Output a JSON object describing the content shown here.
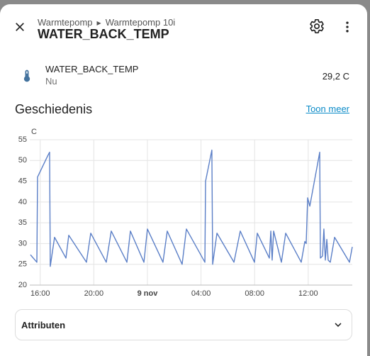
{
  "header": {
    "breadcrumb": [
      "Warmtepomp",
      "Warmtepomp 10i"
    ],
    "title": "WATER_BACK_TEMP"
  },
  "entity": {
    "name": "WATER_BACK_TEMP",
    "state_label": "Nu",
    "value": "29,2 C"
  },
  "history": {
    "title": "Geschiedenis",
    "link": "Toon meer"
  },
  "chart_data": {
    "type": "line",
    "y_label": "C",
    "x": [
      -8.73,
      -8.25,
      -8.2,
      -7.46,
      -7.3,
      -7.25,
      -6.93,
      -6.08,
      -5.87,
      -4.55,
      -4.23,
      -3.07,
      -2.7,
      -1.53,
      -1.27,
      -0.26,
      0,
      1.16,
      1.48,
      2.59,
      2.91,
      4.29,
      4.34,
      4.81,
      4.87,
      5.19,
      6.46,
      6.93,
      7.99,
      8.2,
      9.1,
      9.21,
      9.31,
      9.42,
      10.0,
      10.32,
      11.48,
      11.75,
      11.85,
      11.96,
      12.12,
      12.86,
      12.91,
      13.07,
      13.17,
      13.28,
      13.39,
      13.49,
      13.65,
      13.97,
      15.08,
      15.29
    ],
    "series": [
      {
        "color": "#5b7fc7",
        "values": [
          27.3,
          25.5,
          46,
          51,
          52,
          24.5,
          31.5,
          26.5,
          32,
          25.5,
          32.5,
          25.5,
          33,
          25.5,
          33,
          25.5,
          33.5,
          25.5,
          33,
          25,
          33.5,
          25.5,
          45,
          52.5,
          25,
          32.5,
          25.5,
          33,
          25.5,
          32.5,
          26.5,
          33,
          26,
          33,
          25.5,
          32.5,
          25.5,
          30.5,
          30,
          41,
          39,
          52,
          26.5,
          27,
          33.5,
          26,
          31,
          26,
          25.5,
          31.5,
          25.5,
          29.2
        ]
      }
    ],
    "xlim": [
      -8.78,
      15.29
    ],
    "ylim": [
      20,
      55
    ],
    "xticks": [
      {
        "value": -8,
        "label": "16:00"
      },
      {
        "value": -4,
        "label": "20:00"
      },
      {
        "value": 0,
        "label": "9 nov"
      },
      {
        "value": 4,
        "label": "04:00"
      },
      {
        "value": 8,
        "label": "08:00"
      },
      {
        "value": 12,
        "label": "12:00"
      }
    ],
    "yticks": [
      20,
      25,
      30,
      35,
      40,
      45,
      50,
      55
    ],
    "grid": true
  },
  "attributes": {
    "title": "Attributen"
  }
}
